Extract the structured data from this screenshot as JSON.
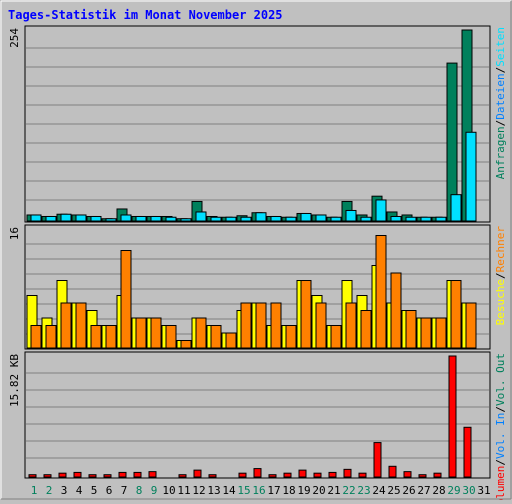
{
  "title": "Tages-Statistik im Monat November 2025",
  "colors": {
    "background": "#c0c0c0",
    "title": "#0000ff",
    "hits": "#00805c",
    "files": "#0080ff",
    "pages": "#00e0ff",
    "visits": "#ffff00",
    "sites": "#ff8000",
    "kbytes": "#ff0000",
    "weekend_label": "#00805c",
    "weekday_label": "#000000"
  },
  "legend": {
    "top": [
      {
        "text": "Anfragen",
        "color": "#00805c"
      },
      {
        "text": "Dateien",
        "color": "#0080ff"
      },
      {
        "text": "Seiten",
        "color": "#00e0ff"
      }
    ],
    "mid": [
      {
        "text": "Besuche",
        "color": "#ffff00"
      },
      {
        "text": "Rechner",
        "color": "#ff8000"
      }
    ],
    "bottom": [
      {
        "text": "Volumen",
        "color": "#ff0000"
      },
      {
        "text": "Vol. In",
        "color": "#0080ff"
      },
      {
        "text": "Vol. Out",
        "color": "#00805c"
      }
    ],
    "separator": "/"
  },
  "chart_data": [
    {
      "type": "bar",
      "name": "hits-files-pages",
      "categories": [
        "1",
        "2",
        "3",
        "4",
        "5",
        "6",
        "7",
        "8",
        "9",
        "10",
        "11",
        "12",
        "13",
        "14",
        "15",
        "16",
        "17",
        "18",
        "19",
        "20",
        "21",
        "22",
        "23",
        "24",
        "25",
        "26",
        "27",
        "28",
        "29",
        "30",
        "31"
      ],
      "weekend_days": [
        "1",
        "2",
        "8",
        "9",
        "15",
        "16",
        "22",
        "23",
        "29",
        "30"
      ],
      "ymax_label": "254",
      "ylim": [
        0,
        254
      ],
      "series": [
        {
          "name": "Anfragen",
          "values": [
            8,
            6,
            9,
            8,
            6,
            3,
            16,
            6,
            6,
            6,
            3,
            26,
            6,
            5,
            7,
            11,
            6,
            5,
            10,
            8,
            5,
            26,
            8,
            33,
            12,
            8,
            5,
            5,
            210,
            254,
            0
          ]
        },
        {
          "name": "Dateien",
          "values": [
            0,
            0,
            0,
            0,
            0,
            0,
            0,
            0,
            0,
            0,
            0,
            0,
            0,
            0,
            0,
            0,
            0,
            0,
            0,
            0,
            0,
            0,
            0,
            0,
            0,
            0,
            0,
            0,
            0,
            0,
            0
          ]
        },
        {
          "name": "Seiten",
          "values": [
            8,
            6,
            9,
            8,
            6,
            3,
            8,
            6,
            6,
            5,
            3,
            12,
            5,
            5,
            5,
            11,
            6,
            5,
            10,
            8,
            5,
            14,
            5,
            28,
            6,
            5,
            5,
            5,
            35,
            118,
            0
          ]
        }
      ]
    },
    {
      "type": "bar",
      "name": "visits-sites",
      "categories": [
        "1",
        "2",
        "3",
        "4",
        "5",
        "6",
        "7",
        "8",
        "9",
        "10",
        "11",
        "12",
        "13",
        "14",
        "15",
        "16",
        "17",
        "18",
        "19",
        "20",
        "21",
        "22",
        "23",
        "24",
        "25",
        "26",
        "27",
        "28",
        "29",
        "30",
        "31"
      ],
      "ymax_label": "16",
      "ylim": [
        0,
        16
      ],
      "series": [
        {
          "name": "Besuche",
          "values": [
            7,
            4,
            9,
            6,
            5,
            3,
            7,
            4,
            4,
            3,
            1,
            4,
            3,
            2,
            5,
            6,
            3,
            3,
            9,
            7,
            3,
            9,
            7,
            11,
            6,
            5,
            4,
            4,
            9,
            6,
            0
          ]
        },
        {
          "name": "Rechner",
          "values": [
            3,
            3,
            6,
            6,
            3,
            3,
            13,
            4,
            4,
            3,
            1,
            4,
            3,
            2,
            6,
            6,
            6,
            3,
            9,
            6,
            3,
            6,
            5,
            15,
            10,
            5,
            4,
            4,
            9,
            6,
            0
          ]
        }
      ]
    },
    {
      "type": "bar",
      "name": "kbytes",
      "categories": [
        "1",
        "2",
        "3",
        "4",
        "5",
        "6",
        "7",
        "8",
        "9",
        "10",
        "11",
        "12",
        "13",
        "14",
        "15",
        "16",
        "17",
        "18",
        "19",
        "20",
        "21",
        "22",
        "23",
        "24",
        "25",
        "26",
        "27",
        "28",
        "29",
        "30",
        "31"
      ],
      "ymax_label": "15.82 KB",
      "ylim": [
        0,
        15.82
      ],
      "series": [
        {
          "name": "Volumen",
          "values": [
            0.3,
            0.3,
            0.5,
            0.6,
            0.3,
            0.3,
            0.6,
            0.6,
            0.7,
            0,
            0.3,
            0.9,
            0.3,
            0,
            0.5,
            1.1,
            0.3,
            0.5,
            0.9,
            0.5,
            0.6,
            1.0,
            0.5,
            4.5,
            1.4,
            0.7,
            0.3,
            0.5,
            15.82,
            6.5,
            0
          ]
        },
        {
          "name": "Vol. In",
          "values": [
            0,
            0,
            0,
            0,
            0,
            0,
            0,
            0,
            0,
            0,
            0,
            0,
            0,
            0,
            0,
            0,
            0,
            0,
            0,
            0,
            0,
            0,
            0,
            0,
            0,
            0,
            0,
            0,
            0,
            0,
            0
          ]
        },
        {
          "name": "Vol. Out",
          "values": [
            0,
            0,
            0,
            0,
            0,
            0,
            0,
            0,
            0,
            0,
            0,
            0,
            0,
            0,
            0,
            0,
            0,
            0,
            0,
            0,
            0,
            0,
            0,
            0,
            0,
            0,
            0,
            0,
            0,
            0,
            0
          ]
        }
      ]
    }
  ]
}
